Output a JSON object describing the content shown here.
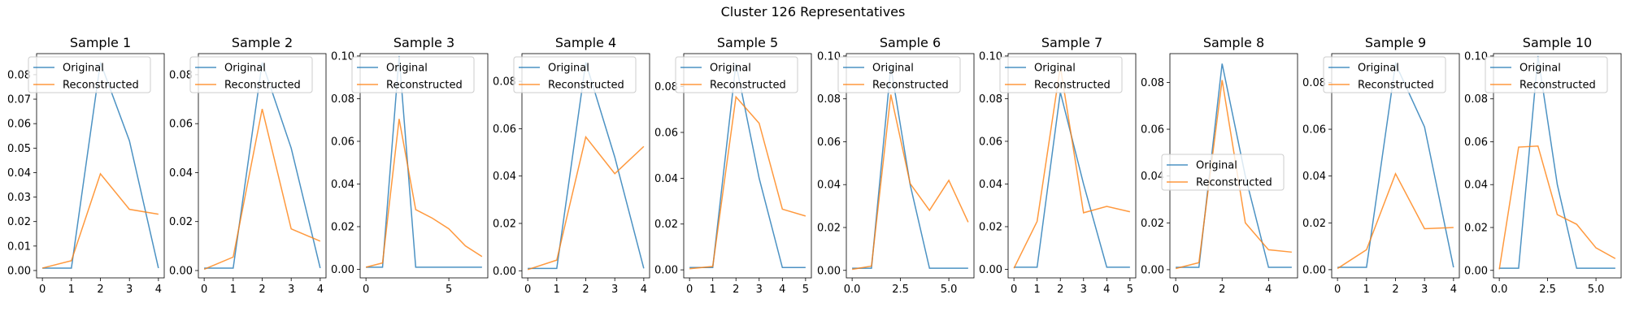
{
  "figure_title": "Cluster 126 Representatives",
  "chart_data": [
    {
      "type": "line",
      "title": "Sample 1",
      "x": [
        0,
        1,
        2,
        3,
        4
      ],
      "series": [
        {
          "name": "Original",
          "color": "#1f77b4",
          "values": [
            0.001,
            0.001,
            0.085,
            0.053,
            0.001
          ]
        },
        {
          "name": "Reconstructed",
          "color": "#ff7f0e",
          "values": [
            0.001,
            0.004,
            0.0395,
            0.025,
            0.023
          ]
        }
      ],
      "xlim": [
        -0.2,
        4.2
      ],
      "ylim": [
        -0.003,
        0.0886
      ],
      "xticks": [
        {
          "v": 0,
          "label": "0"
        },
        {
          "v": 1,
          "label": "1"
        },
        {
          "v": 2,
          "label": "2"
        },
        {
          "v": 3,
          "label": "3"
        },
        {
          "v": 4,
          "label": "4"
        }
      ],
      "yticks": [
        {
          "v": 0,
          "label": "0.00"
        },
        {
          "v": 0.01,
          "label": "0.01"
        },
        {
          "v": 0.02,
          "label": "0.02"
        },
        {
          "v": 0.03,
          "label": "0.03"
        },
        {
          "v": 0.04,
          "label": "0.04"
        },
        {
          "v": 0.05,
          "label": "0.05"
        },
        {
          "v": 0.06,
          "label": "0.06"
        },
        {
          "v": 0.07,
          "label": "0.07"
        },
        {
          "v": 0.08,
          "label": "0.08"
        }
      ],
      "legend": "upper-left"
    },
    {
      "type": "line",
      "title": "Sample 2",
      "x": [
        0,
        1,
        2,
        3,
        4
      ],
      "series": [
        {
          "name": "Original",
          "color": "#1f77b4",
          "values": [
            0.001,
            0.001,
            0.085,
            0.05,
            0.001
          ]
        },
        {
          "name": "Reconstructed",
          "color": "#ff7f0e",
          "values": [
            0.0005,
            0.0055,
            0.066,
            0.017,
            0.012
          ]
        }
      ],
      "xlim": [
        -0.2,
        4.2
      ],
      "ylim": [
        -0.003,
        0.0886
      ],
      "xticks": [
        {
          "v": 0,
          "label": "0"
        },
        {
          "v": 1,
          "label": "1"
        },
        {
          "v": 2,
          "label": "2"
        },
        {
          "v": 3,
          "label": "3"
        },
        {
          "v": 4,
          "label": "4"
        }
      ],
      "yticks": [
        {
          "v": 0,
          "label": "0.00"
        },
        {
          "v": 0.02,
          "label": "0.02"
        },
        {
          "v": 0.04,
          "label": "0.04"
        },
        {
          "v": 0.06,
          "label": "0.06"
        },
        {
          "v": 0.08,
          "label": "0.08"
        }
      ],
      "legend": "upper-left"
    },
    {
      "type": "line",
      "title": "Sample 3",
      "x": [
        0,
        1,
        2,
        3,
        4,
        5,
        6,
        7
      ],
      "series": [
        {
          "name": "Original",
          "color": "#1f77b4",
          "values": [
            0.001,
            0.001,
            0.1,
            0.001,
            0.001,
            0.001,
            0.001,
            0.001
          ]
        },
        {
          "name": "Reconstructed",
          "color": "#ff7f0e",
          "values": [
            0.001,
            0.003,
            0.0705,
            0.028,
            0.024,
            0.019,
            0.011,
            0.006
          ]
        }
      ],
      "xlim": [
        -0.35,
        7.35
      ],
      "ylim": [
        -0.004,
        0.1011
      ],
      "xticks": [
        {
          "v": 0,
          "label": "0"
        },
        {
          "v": 5,
          "label": "5"
        }
      ],
      "yticks": [
        {
          "v": 0,
          "label": "0.00"
        },
        {
          "v": 0.02,
          "label": "0.02"
        },
        {
          "v": 0.04,
          "label": "0.04"
        },
        {
          "v": 0.06,
          "label": "0.06"
        },
        {
          "v": 0.08,
          "label": "0.08"
        },
        {
          "v": 0.1,
          "label": "0.10"
        }
      ],
      "legend": "upper-left"
    },
    {
      "type": "line",
      "title": "Sample 4",
      "x": [
        0,
        1,
        2,
        3,
        4
      ],
      "series": [
        {
          "name": "Original",
          "color": "#1f77b4",
          "values": [
            0.001,
            0.001,
            0.088,
            0.048,
            0.001
          ]
        },
        {
          "name": "Reconstructed",
          "color": "#ff7f0e",
          "values": [
            0.0005,
            0.0045,
            0.0565,
            0.041,
            0.0525
          ]
        }
      ],
      "xlim": [
        -0.2,
        4.2
      ],
      "ylim": [
        -0.003,
        0.0917
      ],
      "xticks": [
        {
          "v": 0,
          "label": "0"
        },
        {
          "v": 1,
          "label": "1"
        },
        {
          "v": 2,
          "label": "2"
        },
        {
          "v": 3,
          "label": "3"
        },
        {
          "v": 4,
          "label": "4"
        }
      ],
      "yticks": [
        {
          "v": 0,
          "label": "0.00"
        },
        {
          "v": 0.02,
          "label": "0.02"
        },
        {
          "v": 0.04,
          "label": "0.04"
        },
        {
          "v": 0.06,
          "label": "0.06"
        },
        {
          "v": 0.08,
          "label": "0.08"
        }
      ],
      "legend": "upper-left"
    },
    {
      "type": "line",
      "title": "Sample 5",
      "x": [
        0,
        1,
        2,
        3,
        4,
        5
      ],
      "series": [
        {
          "name": "Original",
          "color": "#1f77b4",
          "values": [
            0.001,
            0.001,
            0.09,
            0.04,
            0.001,
            0.001
          ]
        },
        {
          "name": "Reconstructed",
          "color": "#ff7f0e",
          "values": [
            0.0005,
            0.0015,
            0.0755,
            0.064,
            0.0265,
            0.0235
          ]
        }
      ],
      "xlim": [
        -0.25,
        5.25
      ],
      "ylim": [
        -0.0035,
        0.0944
      ],
      "xticks": [
        {
          "v": 0,
          "label": "0"
        },
        {
          "v": 1,
          "label": "1"
        },
        {
          "v": 2,
          "label": "2"
        },
        {
          "v": 3,
          "label": "3"
        },
        {
          "v": 4,
          "label": "4"
        },
        {
          "v": 5,
          "label": "5"
        }
      ],
      "yticks": [
        {
          "v": 0,
          "label": "0.00"
        },
        {
          "v": 0.02,
          "label": "0.02"
        },
        {
          "v": 0.04,
          "label": "0.04"
        },
        {
          "v": 0.06,
          "label": "0.06"
        },
        {
          "v": 0.08,
          "label": "0.08"
        }
      ],
      "legend": "upper-left"
    },
    {
      "type": "line",
      "title": "Sample 6",
      "x": [
        0,
        1,
        2,
        3,
        4,
        5,
        6
      ],
      "series": [
        {
          "name": "Original",
          "color": "#1f77b4",
          "values": [
            0.001,
            0.001,
            0.095,
            0.04,
            0.001,
            0.001,
            0.001
          ]
        },
        {
          "name": "Reconstructed",
          "color": "#ff7f0e",
          "values": [
            0.0005,
            0.002,
            0.082,
            0.0405,
            0.028,
            0.042,
            0.0225
          ]
        }
      ],
      "xlim": [
        -0.3,
        6.3
      ],
      "ylim": [
        -0.0035,
        0.1011
      ],
      "xticks": [
        {
          "v": 0,
          "label": "0.0"
        },
        {
          "v": 2.5,
          "label": "2.5"
        },
        {
          "v": 5,
          "label": "5.0"
        }
      ],
      "yticks": [
        {
          "v": 0,
          "label": "0.00"
        },
        {
          "v": 0.02,
          "label": "0.02"
        },
        {
          "v": 0.04,
          "label": "0.04"
        },
        {
          "v": 0.06,
          "label": "0.06"
        },
        {
          "v": 0.08,
          "label": "0.08"
        },
        {
          "v": 0.1,
          "label": "0.10"
        }
      ],
      "legend": "upper-left"
    },
    {
      "type": "line",
      "title": "Sample 7",
      "x": [
        0,
        1,
        2,
        3,
        4,
        5
      ],
      "series": [
        {
          "name": "Original",
          "color": "#1f77b4",
          "values": [
            0.001,
            0.001,
            0.083,
            0.04,
            0.001,
            0.001
          ]
        },
        {
          "name": "Reconstructed",
          "color": "#ff7f0e",
          "values": [
            0.0005,
            0.0225,
            0.095,
            0.0265,
            0.0295,
            0.027
          ]
        }
      ],
      "xlim": [
        -0.25,
        5.25
      ],
      "ylim": [
        -0.004,
        0.1011
      ],
      "xticks": [
        {
          "v": 0,
          "label": "0"
        },
        {
          "v": 1,
          "label": "1"
        },
        {
          "v": 2,
          "label": "2"
        },
        {
          "v": 3,
          "label": "3"
        },
        {
          "v": 4,
          "label": "4"
        },
        {
          "v": 5,
          "label": "5"
        }
      ],
      "yticks": [
        {
          "v": 0,
          "label": "0.00"
        },
        {
          "v": 0.02,
          "label": "0.02"
        },
        {
          "v": 0.04,
          "label": "0.04"
        },
        {
          "v": 0.06,
          "label": "0.06"
        },
        {
          "v": 0.08,
          "label": "0.08"
        },
        {
          "v": 0.1,
          "label": "0.10"
        }
      ],
      "legend": "upper-left"
    },
    {
      "type": "line",
      "title": "Sample 8",
      "x": [
        0,
        1,
        2,
        3,
        4,
        5
      ],
      "series": [
        {
          "name": "Original",
          "color": "#1f77b4",
          "values": [
            0.001,
            0.001,
            0.088,
            0.04,
            0.001,
            0.001
          ]
        },
        {
          "name": "Reconstructed",
          "color": "#ff7f0e",
          "values": [
            0.0005,
            0.003,
            0.081,
            0.02,
            0.0085,
            0.0075
          ]
        }
      ],
      "xlim": [
        -0.25,
        5.25
      ],
      "ylim": [
        -0.0035,
        0.0923
      ],
      "xticks": [
        {
          "v": 0,
          "label": "0"
        },
        {
          "v": 2,
          "label": "2"
        },
        {
          "v": 4,
          "label": "4"
        }
      ],
      "yticks": [
        {
          "v": 0,
          "label": "0.00"
        },
        {
          "v": 0.02,
          "label": "0.02"
        },
        {
          "v": 0.04,
          "label": "0.04"
        },
        {
          "v": 0.06,
          "label": "0.06"
        },
        {
          "v": 0.08,
          "label": "0.08"
        }
      ],
      "legend": "center-left"
    },
    {
      "type": "line",
      "title": "Sample 9",
      "x": [
        0,
        1,
        2,
        3,
        4
      ],
      "series": [
        {
          "name": "Original",
          "color": "#1f77b4",
          "values": [
            0.001,
            0.001,
            0.088,
            0.061,
            0.001
          ]
        },
        {
          "name": "Reconstructed",
          "color": "#ff7f0e",
          "values": [
            0.0005,
            0.0085,
            0.041,
            0.0175,
            0.018
          ]
        }
      ],
      "xlim": [
        -0.2,
        4.2
      ],
      "ylim": [
        -0.0035,
        0.0923
      ],
      "xticks": [
        {
          "v": 0,
          "label": "0"
        },
        {
          "v": 1,
          "label": "1"
        },
        {
          "v": 2,
          "label": "2"
        },
        {
          "v": 3,
          "label": "3"
        },
        {
          "v": 4,
          "label": "4"
        }
      ],
      "yticks": [
        {
          "v": 0,
          "label": "0.00"
        },
        {
          "v": 0.02,
          "label": "0.02"
        },
        {
          "v": 0.04,
          "label": "0.04"
        },
        {
          "v": 0.06,
          "label": "0.06"
        },
        {
          "v": 0.08,
          "label": "0.08"
        }
      ],
      "legend": "upper-left"
    },
    {
      "type": "line",
      "title": "Sample 10",
      "x": [
        0,
        1,
        2,
        3,
        4,
        5,
        6
      ],
      "series": [
        {
          "name": "Original",
          "color": "#1f77b4",
          "values": [
            0.001,
            0.001,
            0.1,
            0.04,
            0.001,
            0.001,
            0.001
          ]
        },
        {
          "name": "Reconstructed",
          "color": "#ff7f0e",
          "values": [
            0.0005,
            0.0575,
            0.058,
            0.026,
            0.0215,
            0.0105,
            0.0055
          ]
        }
      ],
      "xlim": [
        -0.3,
        6.3
      ],
      "ylim": [
        -0.0035,
        0.1011
      ],
      "xticks": [
        {
          "v": 0,
          "label": "0.0"
        },
        {
          "v": 2.5,
          "label": "2.5"
        },
        {
          "v": 5,
          "label": "5.0"
        }
      ],
      "yticks": [
        {
          "v": 0,
          "label": "0.00"
        },
        {
          "v": 0.02,
          "label": "0.02"
        },
        {
          "v": 0.04,
          "label": "0.04"
        },
        {
          "v": 0.06,
          "label": "0.06"
        },
        {
          "v": 0.08,
          "label": "0.08"
        },
        {
          "v": 0.1,
          "label": "0.10"
        }
      ],
      "legend": "upper-left"
    }
  ]
}
